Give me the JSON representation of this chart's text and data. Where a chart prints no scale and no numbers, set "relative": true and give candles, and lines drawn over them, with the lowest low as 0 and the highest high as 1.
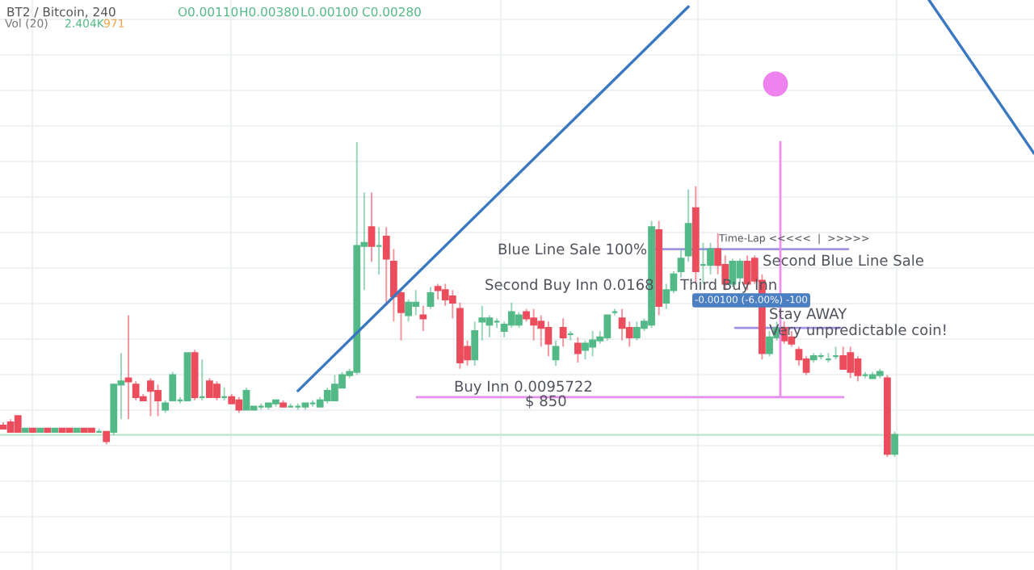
{
  "chart_data": {
    "type": "candlestick",
    "title": "BT2 / Bitcoin, 240",
    "relative": true,
    "grid": true,
    "tick_labels": false,
    "categories": [
      null,
      null,
      null,
      null,
      null,
      null,
      null,
      null,
      null,
      null,
      null,
      null,
      null,
      null,
      null,
      null,
      null,
      null,
      null,
      null,
      null,
      null,
      null,
      null,
      null,
      null,
      null,
      null,
      null,
      null,
      null,
      null,
      null,
      null,
      null,
      null,
      null,
      null,
      null,
      null,
      null,
      null,
      null,
      null,
      null,
      null,
      null,
      null,
      null,
      null,
      null,
      null,
      null,
      null,
      null,
      null,
      null,
      null,
      null,
      null,
      null,
      null,
      null,
      null,
      null,
      null,
      null,
      null,
      null,
      null,
      null,
      null,
      null,
      null,
      null,
      null,
      null,
      null,
      null,
      null,
      null,
      null,
      null,
      null,
      null,
      null,
      null,
      null,
      null,
      null,
      null,
      null,
      null,
      null,
      null,
      null,
      null,
      null,
      null,
      null,
      null,
      null,
      null,
      null,
      null,
      null,
      null,
      null,
      null,
      null,
      null,
      null,
      null,
      null,
      null,
      null,
      null,
      null,
      null,
      null,
      null,
      null
    ],
    "ohlc": [
      [
        0.1,
        0.11,
        0.09,
        0.09
      ],
      [
        0.11,
        0.12,
        0.08,
        0.08
      ],
      [
        0.13,
        0.13,
        0.08,
        0.08
      ],
      [
        0.08,
        0.09,
        0.08,
        0.09
      ],
      [
        0.09,
        0.09,
        0.08,
        0.08
      ],
      [
        0.08,
        0.09,
        0.08,
        0.09
      ],
      [
        0.09,
        0.09,
        0.08,
        0.08
      ],
      [
        0.08,
        0.09,
        0.08,
        0.09
      ],
      [
        0.09,
        0.09,
        0.08,
        0.08
      ],
      [
        0.09,
        0.09,
        0.08,
        0.08
      ],
      [
        0.08,
        0.09,
        0.08,
        0.09
      ],
      [
        0.09,
        0.09,
        0.08,
        0.08
      ],
      [
        0.09,
        0.09,
        0.08,
        0.08
      ],
      [
        0.08,
        0.09,
        0.08,
        0.08
      ],
      [
        0.08,
        0.08,
        0.04,
        0.05
      ],
      [
        0.08,
        0.23,
        0.07,
        0.23
      ],
      [
        0.23,
        0.33,
        0.12,
        0.24
      ],
      [
        0.25,
        0.45,
        0.12,
        0.24
      ],
      [
        0.23,
        0.24,
        0.18,
        0.19
      ],
      [
        0.19,
        0.2,
        0.18,
        0.18
      ],
      [
        0.24,
        0.25,
        0.13,
        0.21
      ],
      [
        0.21,
        0.23,
        0.13,
        0.18
      ],
      [
        0.15,
        0.18,
        0.14,
        0.17
      ],
      [
        0.18,
        0.27,
        0.18,
        0.26
      ],
      [
        0.18,
        0.19,
        0.17,
        0.18
      ],
      [
        0.18,
        0.33,
        0.18,
        0.33
      ],
      [
        0.33,
        0.34,
        0.18,
        0.19
      ],
      [
        0.19,
        0.31,
        0.18,
        0.19
      ],
      [
        0.24,
        0.25,
        0.19,
        0.19
      ],
      [
        0.23,
        0.24,
        0.18,
        0.19
      ],
      [
        0.19,
        0.22,
        0.18,
        0.19
      ],
      [
        0.19,
        0.2,
        0.17,
        0.17
      ],
      [
        0.18,
        0.19,
        0.14,
        0.15
      ],
      [
        0.15,
        0.22,
        0.15,
        0.21
      ],
      [
        0.15,
        0.16,
        0.15,
        0.16
      ],
      [
        0.16,
        0.17,
        0.15,
        0.16
      ],
      [
        0.16,
        0.17,
        0.15,
        0.17
      ],
      [
        0.17,
        0.18,
        0.16,
        0.18
      ],
      [
        0.17,
        0.18,
        0.16,
        0.16
      ],
      [
        0.16,
        0.17,
        0.16,
        0.16
      ],
      [
        0.16,
        0.17,
        0.15,
        0.16
      ],
      [
        0.16,
        0.17,
        0.15,
        0.17
      ],
      [
        0.17,
        0.18,
        0.16,
        0.17
      ],
      [
        0.16,
        0.19,
        0.16,
        0.18
      ],
      [
        0.18,
        0.22,
        0.17,
        0.21
      ],
      [
        0.18,
        0.26,
        0.18,
        0.23
      ],
      [
        0.22,
        0.27,
        0.22,
        0.26
      ],
      [
        0.26,
        0.28,
        0.25,
        0.27
      ],
      [
        0.27,
        1.0,
        0.26,
        0.67
      ],
      [
        0.67,
        0.84,
        0.53,
        0.68
      ],
      [
        0.73,
        0.84,
        0.62,
        0.67
      ],
      [
        0.67,
        0.73,
        0.58,
        0.67
      ],
      [
        0.7,
        0.73,
        0.48,
        0.63
      ],
      [
        0.62,
        0.66,
        0.43,
        0.51
      ],
      [
        0.52,
        0.53,
        0.37,
        0.46
      ],
      [
        0.45,
        0.5,
        0.43,
        0.49
      ],
      [
        0.48,
        0.53,
        0.45,
        0.49
      ],
      [
        0.45,
        0.48,
        0.4,
        0.44
      ],
      [
        0.48,
        0.54,
        0.47,
        0.52
      ],
      [
        0.54,
        0.55,
        0.5,
        0.53
      ],
      [
        0.53,
        0.55,
        0.48,
        0.5
      ],
      [
        0.51,
        0.53,
        0.44,
        0.49
      ],
      [
        0.47,
        0.49,
        0.28,
        0.3
      ],
      [
        0.35,
        0.37,
        0.29,
        0.31
      ],
      [
        0.31,
        0.43,
        0.29,
        0.4
      ],
      [
        0.43,
        0.48,
        0.37,
        0.44
      ],
      [
        0.42,
        0.45,
        0.38,
        0.44
      ],
      [
        0.43,
        0.44,
        0.41,
        0.43
      ],
      [
        0.4,
        0.43,
        0.38,
        0.42
      ],
      [
        0.42,
        0.49,
        0.41,
        0.46
      ],
      [
        0.42,
        0.46,
        0.41,
        0.45
      ],
      [
        0.46,
        0.47,
        0.43,
        0.44
      ],
      [
        0.44,
        0.47,
        0.37,
        0.42
      ],
      [
        0.43,
        0.45,
        0.35,
        0.41
      ],
      [
        0.41,
        0.43,
        0.32,
        0.36
      ],
      [
        0.31,
        0.37,
        0.29,
        0.35
      ],
      [
        0.41,
        0.44,
        0.35,
        0.38
      ],
      [
        0.39,
        0.4,
        0.37,
        0.39
      ],
      [
        0.36,
        0.38,
        0.3,
        0.33
      ],
      [
        0.34,
        0.37,
        0.31,
        0.36
      ],
      [
        0.35,
        0.4,
        0.32,
        0.37
      ],
      [
        0.37,
        0.4,
        0.36,
        0.38
      ],
      [
        0.38,
        0.45,
        0.37,
        0.45
      ],
      [
        0.46,
        0.47,
        0.45,
        0.46
      ],
      [
        0.44,
        0.47,
        0.37,
        0.41
      ],
      [
        0.41,
        0.43,
        0.35,
        0.38
      ],
      [
        0.38,
        0.43,
        0.37,
        0.41
      ],
      [
        0.41,
        0.44,
        0.4,
        0.43
      ],
      [
        0.42,
        0.75,
        0.41,
        0.73
      ],
      [
        0.72,
        0.75,
        0.45,
        0.48
      ],
      [
        0.49,
        0.55,
        0.47,
        0.53
      ],
      [
        0.53,
        0.59,
        0.52,
        0.58
      ],
      [
        0.59,
        0.66,
        0.57,
        0.63
      ],
      [
        0.64,
        0.85,
        0.62,
        0.74
      ],
      [
        0.79,
        0.86,
        0.55,
        0.59
      ],
      [
        0.61,
        0.68,
        0.55,
        0.61
      ],
      [
        0.61,
        0.68,
        0.58,
        0.66
      ],
      [
        0.66,
        0.71,
        0.58,
        0.61
      ],
      [
        0.61,
        0.64,
        0.53,
        0.55
      ],
      [
        0.55,
        0.63,
        0.54,
        0.62
      ],
      [
        0.57,
        0.63,
        0.55,
        0.62
      ],
      [
        0.62,
        0.64,
        0.53,
        0.55
      ],
      [
        0.63,
        0.64,
        0.55,
        0.56
      ],
      [
        0.56,
        0.58,
        0.31,
        0.33
      ],
      [
        0.33,
        0.4,
        0.32,
        0.38
      ],
      [
        0.38,
        0.43,
        0.37,
        0.41
      ],
      [
        0.41,
        0.43,
        0.36,
        0.37
      ],
      [
        0.38,
        0.4,
        0.35,
        0.36
      ],
      [
        0.34,
        0.35,
        0.29,
        0.31
      ],
      [
        0.31,
        0.32,
        0.26,
        0.27
      ],
      [
        0.31,
        0.33,
        0.3,
        0.32
      ],
      [
        0.32,
        0.33,
        0.31,
        0.32
      ],
      [
        0.31,
        0.33,
        0.3,
        0.31
      ],
      [
        0.32,
        0.35,
        0.31,
        0.32
      ],
      [
        0.32,
        0.35,
        0.28,
        0.28
      ],
      [
        0.33,
        0.35,
        0.25,
        0.27
      ],
      [
        0.31,
        0.32,
        0.24,
        0.26
      ],
      [
        0.26,
        0.27,
        0.25,
        0.26
      ],
      [
        0.25,
        0.27,
        0.25,
        0.26
      ],
      [
        0.26,
        0.28,
        0.25,
        0.27
      ],
      [
        0.25,
        0.26,
        0.0,
        0.01
      ],
      [
        0.01,
        0.08,
        0.0,
        0.07
      ]
    ],
    "colors": [
      "#eb4d5c",
      "#eb4d5c",
      "#eb4d5c",
      "#53b987",
      "#eb4d5c",
      "#53b987",
      "#eb4d5c",
      "#53b987",
      "#eb4d5c",
      "#eb4d5c",
      "#53b987",
      "#eb4d5c",
      "#eb4d5c",
      "#53b987",
      "#eb4d5c",
      "#53b987",
      "#53b987",
      "#eb4d5c",
      "#eb4d5c",
      "#eb4d5c",
      "#eb4d5c",
      "#eb4d5c",
      "#53b987",
      "#53b987",
      "#53b987",
      "#53b987",
      "#eb4d5c",
      "#53b987",
      "#eb4d5c",
      "#eb4d5c",
      "#53b987",
      "#eb4d5c",
      "#eb4d5c",
      "#53b987",
      "#53b987",
      "#53b987",
      "#53b987",
      "#53b987",
      "#eb4d5c",
      "#53b987",
      "#53b987",
      "#53b987",
      "#53b987",
      "#53b987",
      "#53b987",
      "#53b987",
      "#53b987",
      "#53b987",
      "#53b987",
      "#53b987",
      "#eb4d5c",
      "#53b987",
      "#eb4d5c",
      "#eb4d5c",
      "#eb4d5c",
      "#53b987",
      "#53b987",
      "#eb4d5c",
      "#53b987",
      "#eb4d5c",
      "#eb4d5c",
      "#eb4d5c",
      "#eb4d5c",
      "#eb4d5c",
      "#53b987",
      "#53b987",
      "#53b987",
      "#53b987",
      "#53b987",
      "#53b987",
      "#53b987",
      "#eb4d5c",
      "#eb4d5c",
      "#eb4d5c",
      "#eb4d5c",
      "#53b987",
      "#eb4d5c",
      "#53b987",
      "#eb4d5c",
      "#53b987",
      "#53b987",
      "#53b987",
      "#53b987",
      "#53b987",
      "#eb4d5c",
      "#eb4d5c",
      "#53b987",
      "#53b987",
      "#53b987",
      "#eb4d5c",
      "#53b987",
      "#53b987",
      "#53b987",
      "#53b987",
      "#eb4d5c",
      "#53b987",
      "#53b987",
      "#eb4d5c",
      "#eb4d5c",
      "#53b987",
      "#53b987",
      "#eb4d5c",
      "#eb4d5c",
      "#eb4d5c",
      "#53b987",
      "#53b987",
      "#eb4d5c",
      "#eb4d5c",
      "#eb4d5c",
      "#eb4d5c",
      "#53b987",
      "#53b987",
      "#53b987",
      "#53b987",
      "#eb4d5c",
      "#eb4d5c",
      "#eb4d5c",
      "#53b987",
      "#53b987",
      "#53b987",
      "#eb4d5c",
      "#53b987"
    ],
    "series": [
      {
        "type": "line",
        "values": [
          null,
          null,
          null,
          null,
          null,
          null,
          null,
          null,
          null,
          null,
          null,
          null,
          null,
          null,
          null,
          null,
          null,
          null,
          null,
          null,
          null,
          null,
          null,
          null,
          null,
          null,
          null,
          null,
          null,
          null,
          null,
          null,
          null,
          null,
          null,
          null,
          null,
          null,
          null,
          null,
          0.21,
          null,
          null,
          null,
          null,
          null,
          null,
          null,
          null,
          null,
          null,
          null,
          null,
          null,
          null,
          null,
          null,
          null,
          null,
          null,
          null,
          null,
          null,
          null,
          null,
          null,
          null,
          null,
          null,
          null,
          null,
          null,
          null,
          null,
          null,
          null,
          null,
          null,
          null,
          null,
          null,
          null,
          null,
          null,
          null,
          null,
          null,
          null,
          null,
          null,
          null,
          null,
          null,
          1.43,
          null,
          null,
          null,
          null,
          null,
          null,
          null,
          null,
          null,
          null,
          null,
          null,
          null,
          null,
          null,
          null,
          null,
          null,
          null,
          null,
          null,
          null,
          null,
          null,
          null,
          null,
          null,
          null
        ],
        "color": "#3a78c2"
      }
    ],
    "ref_lines": [
      {
        "axis": "y",
        "value": 0.19,
        "color": "#e58ef0"
      },
      {
        "axis": "y",
        "value": 0.66,
        "color": "#9e94e8"
      },
      {
        "axis": "y",
        "value": 0.41,
        "color": "#9e94e8"
      },
      {
        "axis": "y",
        "value": 0.07,
        "color": "#c8e8d4"
      }
    ],
    "annotations": [
      "O0.00110",
      "H0.00380",
      "L0.00100",
      "C0.00280",
      "Vol (20)",
      "2.404K",
      "971",
      "Blue Line Sale 100%",
      "Second Buy Inn 0.0168",
      "Buy Inn 0.0095722",
      "$ 850",
      "Third Buy Inn",
      "Time-Lap <<<<<  |  >>>>>",
      "Second Blue Line Sale",
      "-0.00100 (-6.00%) -100",
      "Stay AWAY",
      "Very unpredictable coin!"
    ]
  }
}
